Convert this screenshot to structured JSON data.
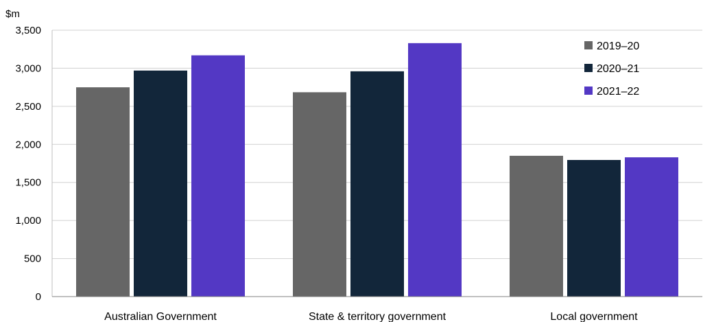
{
  "chart_data": {
    "type": "bar",
    "title": "",
    "xlabel": "",
    "ylabel": "$m",
    "ylim": [
      0,
      3500
    ],
    "yticks": [
      0,
      500,
      1000,
      1500,
      2000,
      2500,
      3000,
      3500
    ],
    "ytick_labels": [
      "0",
      "500",
      "1,000",
      "1,500",
      "2,000",
      "2,500",
      "3,000",
      "3,500"
    ],
    "grid": true,
    "legend_position": "top-right",
    "categories": [
      "Australian Government",
      "State & territory government",
      "Local government"
    ],
    "series": [
      {
        "name": "2019–20",
        "color": "#666666",
        "values": [
          2750,
          2685,
          1850
        ]
      },
      {
        "name": "2020–21",
        "color": "#12263a",
        "values": [
          2970,
          2960,
          1795
        ]
      },
      {
        "name": "2021–22",
        "color": "#5338c4",
        "values": [
          3170,
          3330,
          1830
        ]
      }
    ]
  }
}
